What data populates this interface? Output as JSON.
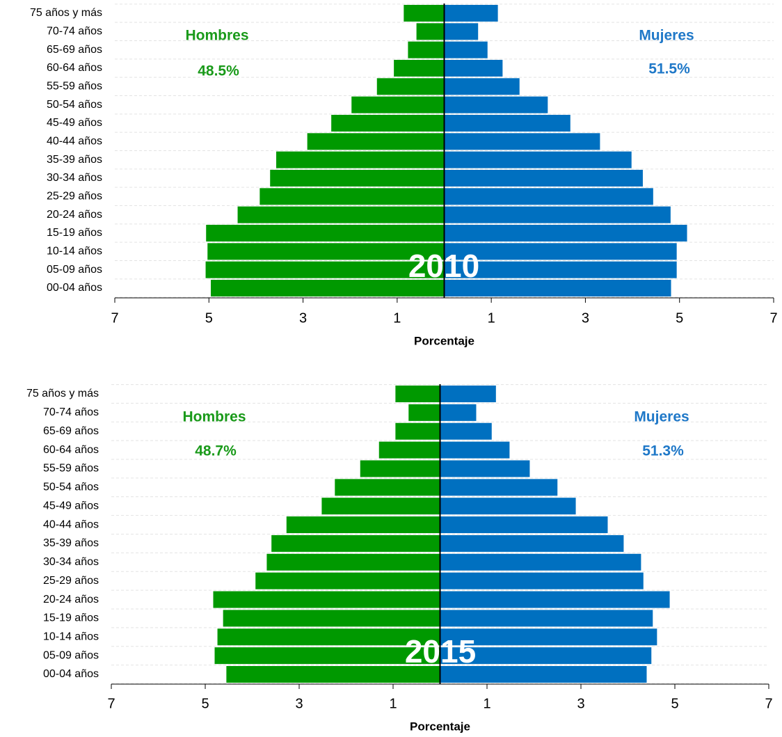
{
  "chart_data": [
    {
      "type": "pyramid",
      "categories": [
        "00-04 años",
        "05-09 años",
        "10-14 años",
        "15-19 años",
        "20-24 años",
        "25-29 años",
        "30-34 años",
        "35-39 años",
        "40-44 años",
        "45-49 años",
        "50-54 años",
        "55-59 años",
        "60-64 años",
        "65-69 años",
        "70-74 años",
        "75 años y más"
      ],
      "series": [
        {
          "name": "Hombres",
          "color": "#009900",
          "values": [
            -4.96,
            -5.07,
            -5.03,
            -5.06,
            -4.39,
            -3.92,
            -3.7,
            -3.57,
            -2.91,
            -2.4,
            -1.97,
            -1.43,
            -1.07,
            -0.77,
            -0.59,
            -0.86
          ]
        },
        {
          "name": "Mujeres",
          "color": "#0070c0",
          "values": [
            4.82,
            4.94,
            4.94,
            5.16,
            4.81,
            4.44,
            4.22,
            3.98,
            3.31,
            2.68,
            2.2,
            1.6,
            1.24,
            0.92,
            0.72,
            1.14
          ]
        }
      ],
      "xlim": [
        -7,
        7
      ],
      "xticks": [
        {
          "value": -7,
          "label": "7"
        },
        {
          "value": -5,
          "label": "5"
        },
        {
          "value": -3,
          "label": "3"
        },
        {
          "value": -1,
          "label": "1"
        },
        1,
        3,
        5,
        7
      ],
      "x_label": "Porcentaje",
      "annotations": [
        "48.5%",
        "51.5%",
        "2010"
      ]
    },
    {
      "type": "pyramid",
      "categories": [
        "00-04 años",
        "05-09 años",
        "10-14 años",
        "15-19 años",
        "20-24 años",
        "25-29 años",
        "30-34 años",
        "35-39 años",
        "40-44 años",
        "45-49 años",
        "50-54 años",
        "55-59 años",
        "60-64 años",
        "65-69 años",
        "70-74 años",
        "75 años y más"
      ],
      "series": [
        {
          "name": "Hombres",
          "color": "#009900",
          "values": [
            -4.55,
            -4.8,
            -4.74,
            -4.62,
            -4.83,
            -3.93,
            -3.69,
            -3.59,
            -3.27,
            -2.52,
            -2.24,
            -1.7,
            -1.3,
            -0.95,
            -0.67,
            -0.95
          ]
        },
        {
          "name": "Mujeres",
          "color": "#0070c0",
          "values": [
            4.4,
            4.5,
            4.62,
            4.53,
            4.89,
            4.33,
            4.28,
            3.91,
            3.57,
            2.89,
            2.5,
            1.91,
            1.48,
            1.1,
            0.77,
            1.19
          ]
        }
      ],
      "xlim": [
        -7,
        7
      ],
      "xticks": [
        {
          "value": -7,
          "label": "7"
        },
        {
          "value": -5,
          "label": "5"
        },
        {
          "value": -3,
          "label": "3"
        },
        {
          "value": -1,
          "label": "1"
        },
        1,
        3,
        5,
        7
      ],
      "x_label": "Porcentaje",
      "annotations": [
        "48.7%",
        "51.3%",
        "2015"
      ]
    }
  ]
}
